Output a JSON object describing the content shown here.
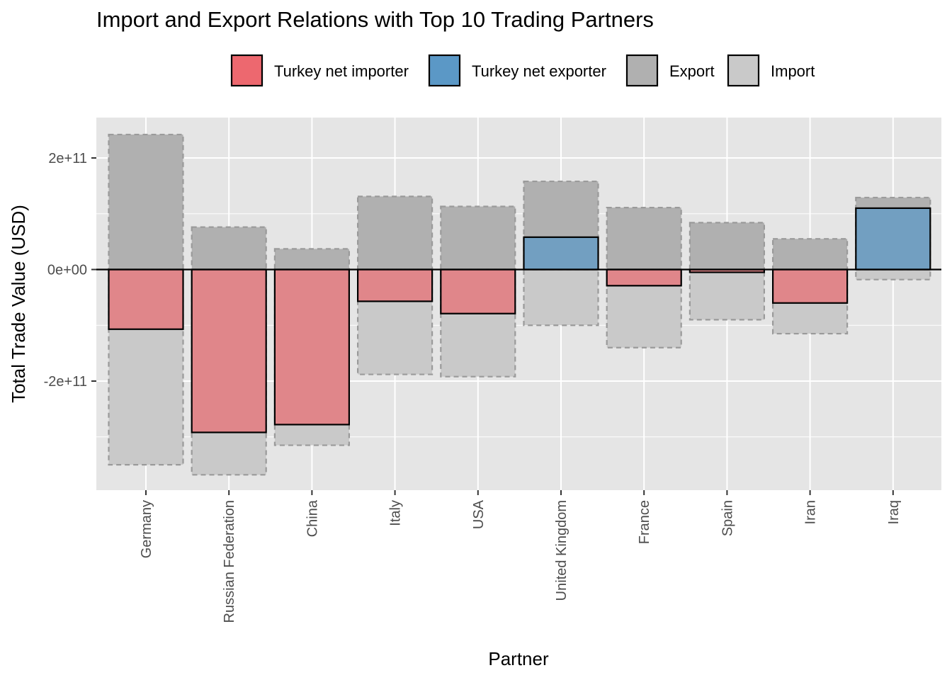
{
  "chart_data": {
    "type": "bar",
    "title": "Import and Export Relations with Top 10 Trading Partners",
    "xlabel": "Partner",
    "ylabel": "Total Trade Value (USD)",
    "ylim": [
      -400000000000,
      270000000000
    ],
    "y_ticks": [
      200000000000,
      0,
      -200000000000
    ],
    "y_tick_labels": [
      "2e+11",
      "0e+00",
      "-2e+11"
    ],
    "categories": [
      "Germany",
      "Russian Federation",
      "China",
      "Italy",
      "USA",
      "United Kingdom",
      "France",
      "Spain",
      "Iran",
      "Iraq"
    ],
    "series": [
      {
        "name": "Export",
        "values": [
          242000000000,
          76000000000,
          37000000000,
          131000000000,
          113000000000,
          158000000000,
          111000000000,
          84000000000,
          55000000000,
          129000000000
        ]
      },
      {
        "name": "Import",
        "values": [
          -350000000000,
          -368000000000,
          -315000000000,
          -188000000000,
          -192000000000,
          -100000000000,
          -140000000000,
          -90000000000,
          -115000000000,
          -18000000000
        ]
      },
      {
        "name": "Net",
        "values": [
          -107000000000,
          -292000000000,
          -278000000000,
          -57000000000,
          -79000000000,
          58000000000,
          -29000000000,
          -5000000000,
          -60000000000,
          110000000000
        ]
      }
    ],
    "legend": {
      "position": "top",
      "items": [
        {
          "label": "Turkey net importer",
          "color": "#ED686F"
        },
        {
          "label": "Turkey net exporter",
          "color": "#5B98C6"
        },
        {
          "label": "Export",
          "color": "#B0B0B0"
        },
        {
          "label": "Import",
          "color": "#C9C9C9"
        }
      ]
    },
    "colors": {
      "net_importer_fill": "#E0868A",
      "net_exporter_fill": "#729FC1",
      "export_fill": "#B0B0B0",
      "import_fill": "#C9C9C9",
      "panel": "#E5E5E5",
      "grid": "#FFFFFF"
    },
    "grid": true
  }
}
